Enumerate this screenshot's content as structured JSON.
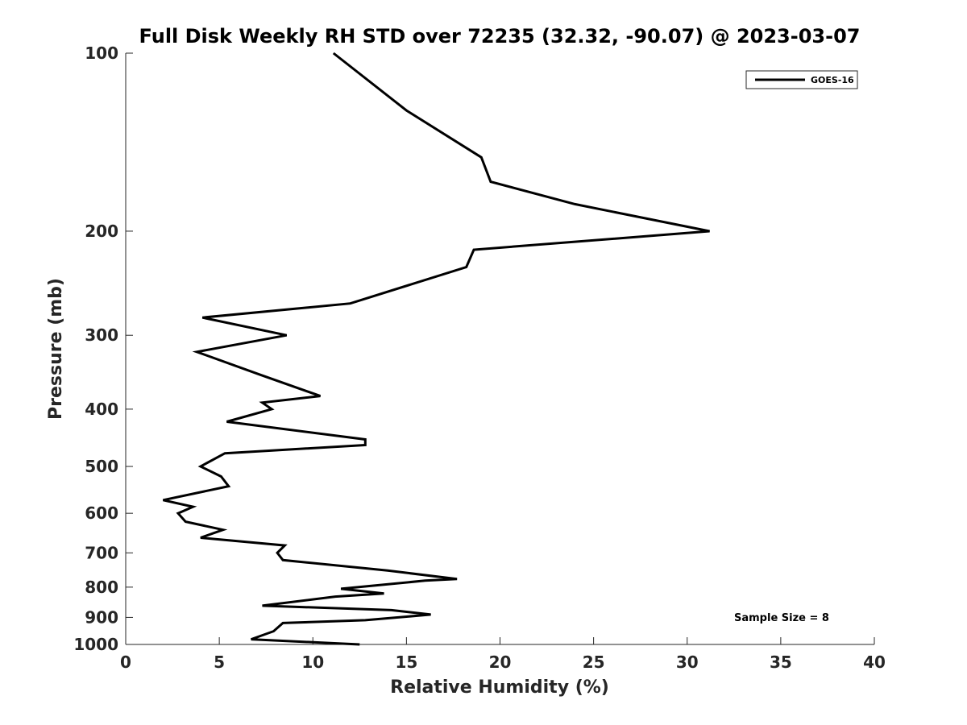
{
  "chart_data": {
    "type": "line",
    "title": "Full Disk Weekly RH STD over 72235 (32.32, -90.07) @ 2023-03-07",
    "xlabel": "Relative Humidity (%)",
    "ylabel": "Pressure (mb)",
    "xlim": [
      0,
      40
    ],
    "ylim": [
      100,
      1000
    ],
    "yscale": "log",
    "yreversed": true,
    "xticks": [
      0,
      5,
      10,
      15,
      20,
      25,
      30,
      35,
      40
    ],
    "yticks": [
      100,
      200,
      300,
      400,
      500,
      600,
      700,
      800,
      900,
      1000
    ],
    "legend": {
      "position": "top-right",
      "entries": [
        "GOES-16"
      ]
    },
    "annotation": "Sample Size = 8",
    "series": [
      {
        "name": "GOES-16",
        "color": "#000000",
        "points": [
          {
            "x": 11.1,
            "p": 100
          },
          {
            "x": 15.0,
            "p": 125
          },
          {
            "x": 19.0,
            "p": 150
          },
          {
            "x": 19.5,
            "p": 165
          },
          {
            "x": 24.0,
            "p": 180
          },
          {
            "x": 31.2,
            "p": 200
          },
          {
            "x": 18.6,
            "p": 215
          },
          {
            "x": 18.2,
            "p": 230
          },
          {
            "x": 12.0,
            "p": 265
          },
          {
            "x": 4.1,
            "p": 280
          },
          {
            "x": 8.6,
            "p": 300
          },
          {
            "x": 3.8,
            "p": 320
          },
          {
            "x": 7.2,
            "p": 350
          },
          {
            "x": 10.4,
            "p": 380
          },
          {
            "x": 7.3,
            "p": 390
          },
          {
            "x": 7.8,
            "p": 400
          },
          {
            "x": 5.4,
            "p": 420
          },
          {
            "x": 12.8,
            "p": 450
          },
          {
            "x": 12.8,
            "p": 460
          },
          {
            "x": 5.3,
            "p": 475
          },
          {
            "x": 4.0,
            "p": 500
          },
          {
            "x": 5.1,
            "p": 520
          },
          {
            "x": 5.5,
            "p": 540
          },
          {
            "x": 2.0,
            "p": 570
          },
          {
            "x": 3.6,
            "p": 585
          },
          {
            "x": 2.8,
            "p": 600
          },
          {
            "x": 3.2,
            "p": 620
          },
          {
            "x": 5.2,
            "p": 640
          },
          {
            "x": 4.0,
            "p": 660
          },
          {
            "x": 8.5,
            "p": 680
          },
          {
            "x": 8.1,
            "p": 700
          },
          {
            "x": 8.4,
            "p": 720
          },
          {
            "x": 14.0,
            "p": 750
          },
          {
            "x": 17.7,
            "p": 775
          },
          {
            "x": 16.0,
            "p": 780
          },
          {
            "x": 11.5,
            "p": 805
          },
          {
            "x": 13.8,
            "p": 820
          },
          {
            "x": 11.2,
            "p": 830
          },
          {
            "x": 7.3,
            "p": 860
          },
          {
            "x": 14.2,
            "p": 875
          },
          {
            "x": 16.3,
            "p": 890
          },
          {
            "x": 12.8,
            "p": 910
          },
          {
            "x": 8.4,
            "p": 920
          },
          {
            "x": 7.9,
            "p": 950
          },
          {
            "x": 6.7,
            "p": 980
          },
          {
            "x": 12.5,
            "p": 1000
          }
        ]
      }
    ]
  }
}
